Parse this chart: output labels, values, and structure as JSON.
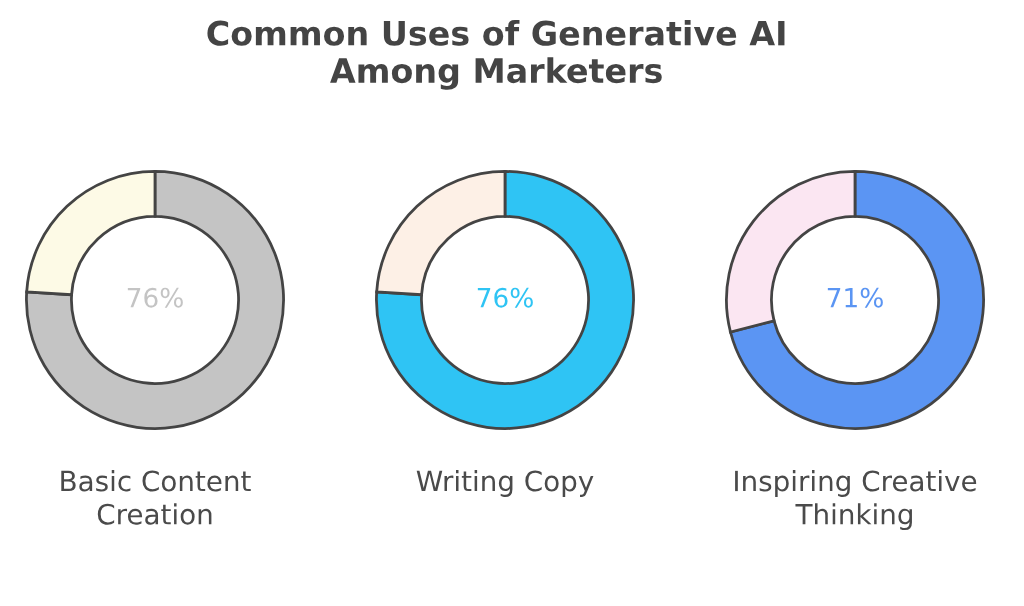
{
  "chart_data": [
    {
      "type": "donut",
      "title": "Common Uses of Generative AI\nAmong Marketers",
      "xlabel": "Basic Content\nCreation",
      "categories": [
        null,
        null
      ],
      "values": [
        76,
        24
      ],
      "colors": [
        "#c4c4c4",
        "#fdfae6"
      ],
      "value_labels": [
        "76%",
        null
      ]
    },
    {
      "type": "donut",
      "xlabel": "Writing Copy",
      "categories": [
        null,
        null
      ],
      "values": [
        76,
        24
      ],
      "colors": [
        "#2fc4f4",
        "#fdf0e6"
      ],
      "value_labels": [
        "76%",
        null
      ]
    },
    {
      "type": "donut",
      "xlabel": "Inspiring Creative\nThinking",
      "categories": [
        null,
        null
      ],
      "values": [
        71,
        29
      ],
      "colors": [
        "#5b95f3",
        "#fbe6f2"
      ],
      "value_labels": [
        "71%",
        null
      ]
    }
  ]
}
